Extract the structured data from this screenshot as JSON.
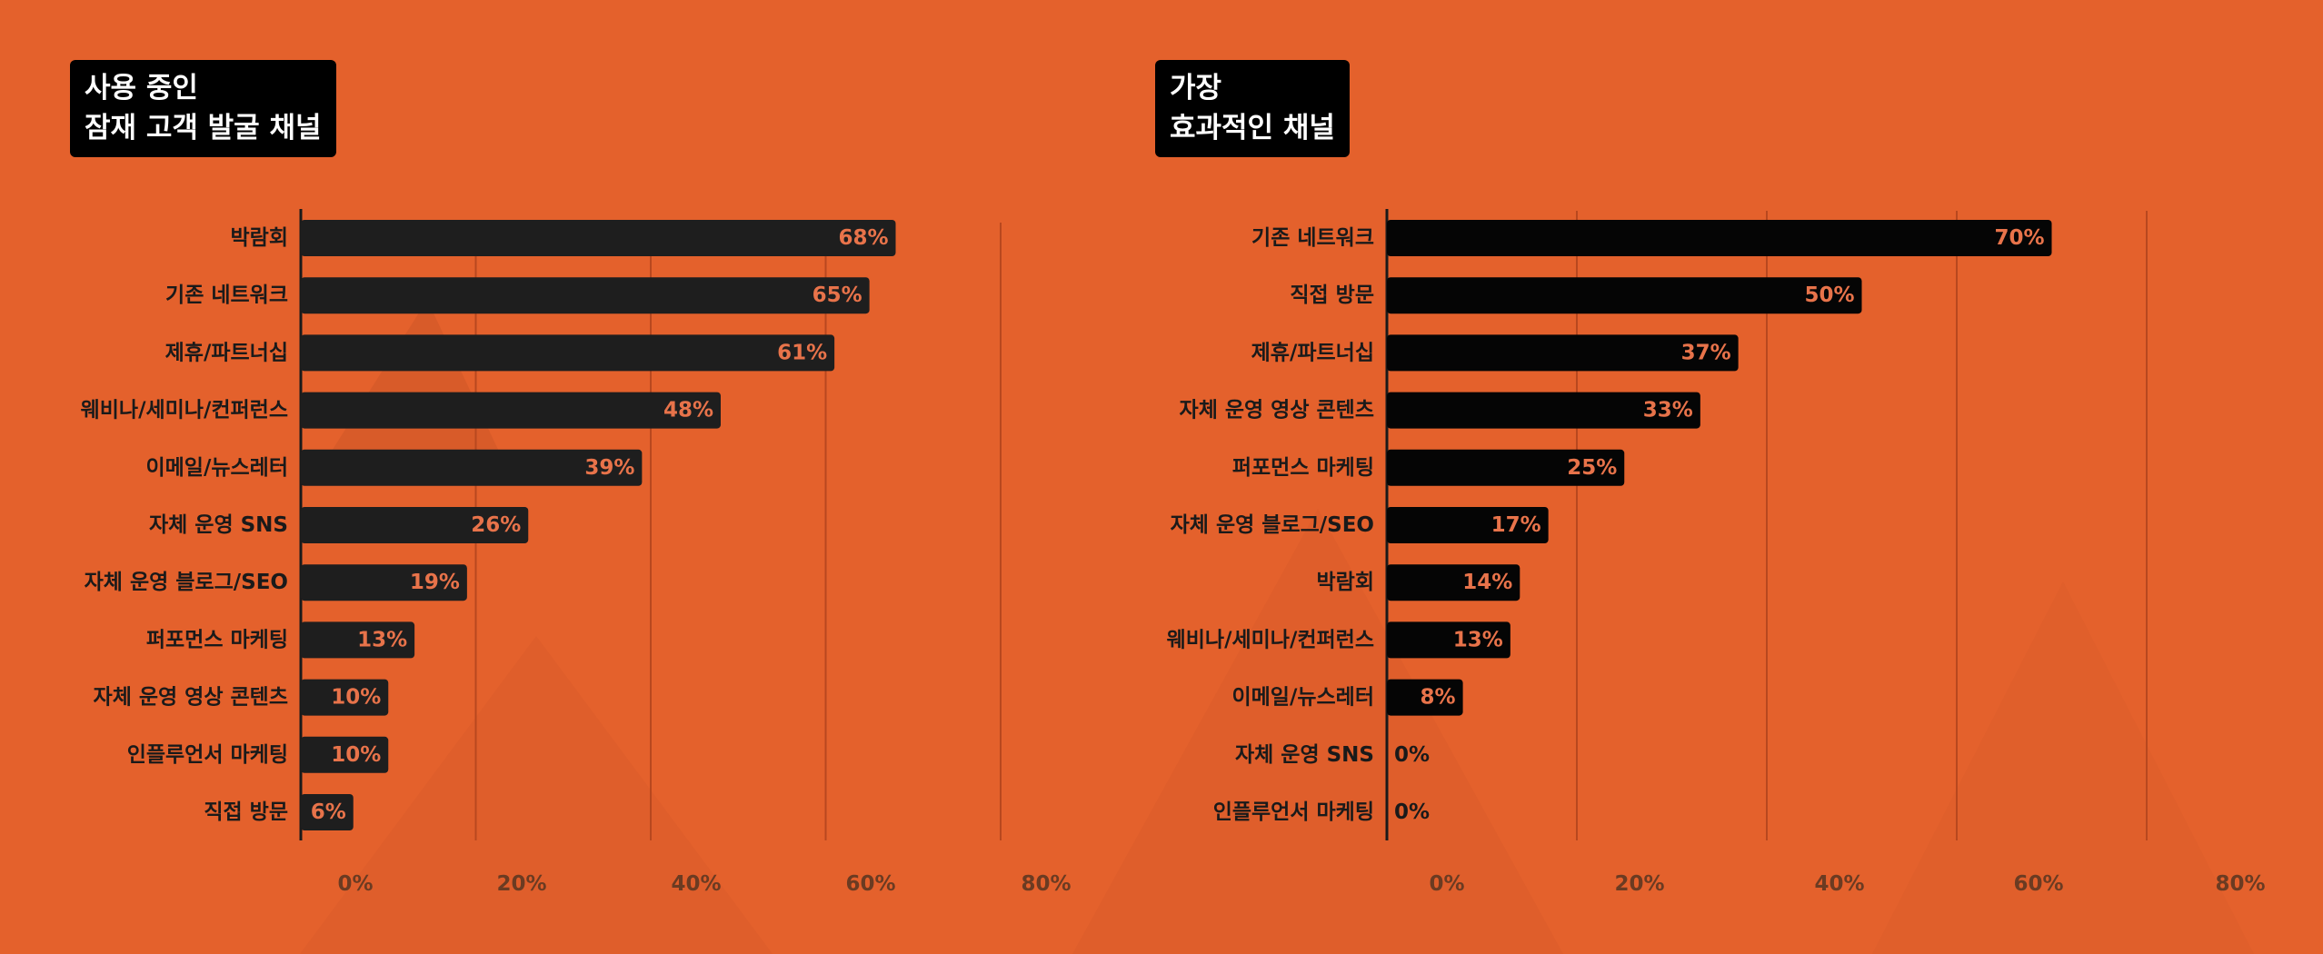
{
  "background_color": "#E4612C",
  "chart_data": [
    {
      "type": "bar",
      "orientation": "horizontal",
      "title": "사용 중인\n잠재 고객 발굴 채널",
      "title_lines": [
        "사용 중인",
        "잠재 고객 발굴 채널"
      ],
      "categories": [
        "박람회",
        "기존 네트워크",
        "제휴/파트너십",
        "웨비나/세미나/컨퍼런스",
        "이메일/뉴스레터",
        "자체 운영 SNS",
        "자체 운영 블로그/SEO",
        "퍼포먼스 마케팅",
        "자체 운영 영상 콘텐츠",
        "인플루언서 마케팅",
        "직접 방문"
      ],
      "values": [
        68,
        65,
        61,
        48,
        39,
        26,
        19,
        13,
        10,
        10,
        6
      ],
      "value_labels": [
        "68%",
        "65%",
        "61%",
        "48%",
        "39%",
        "26%",
        "19%",
        "13%",
        "10%",
        "10%",
        "6%"
      ],
      "xlim": [
        0,
        80
      ],
      "x_ticks": [
        0,
        20,
        40,
        60,
        80
      ],
      "x_tick_labels": [
        "0%",
        "20%",
        "40%",
        "60%",
        "80%"
      ],
      "xlabel": "",
      "ylabel": "",
      "grid": true,
      "bar_color": "#1E1E1E",
      "value_label_color": "#E8734A"
    },
    {
      "type": "bar",
      "orientation": "horizontal",
      "title": "가장\n효과적인 채널",
      "title_lines": [
        "가장",
        "효과적인 채널"
      ],
      "categories": [
        "기존 네트워크",
        "직접 방문",
        "제휴/파트너십",
        "자체 운영 영상 콘텐츠",
        "퍼포먼스 마케팅",
        "자체 운영 블로그/SEO",
        "박람회",
        "웨비나/세미나/컨퍼런스",
        "이메일/뉴스레터",
        "자체 운영 SNS",
        "인플루언서 마케팅"
      ],
      "values": [
        70,
        50,
        37,
        33,
        25,
        17,
        14,
        13,
        8,
        0,
        0
      ],
      "value_labels": [
        "70%",
        "50%",
        "37%",
        "33%",
        "25%",
        "17%",
        "14%",
        "13%",
        "8%",
        "0%",
        "0%"
      ],
      "xlim": [
        0,
        80
      ],
      "x_ticks": [
        0,
        20,
        40,
        60,
        80
      ],
      "x_tick_labels": [
        "0%",
        "20%",
        "40%",
        "60%",
        "80%"
      ],
      "xlabel": "",
      "ylabel": "",
      "grid": true,
      "bar_color": "#050505",
      "value_label_color": "#E8734A"
    }
  ]
}
